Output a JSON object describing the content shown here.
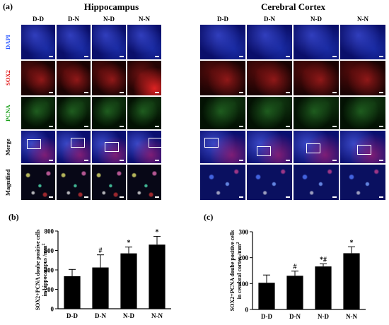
{
  "figure": {
    "panel_a": "(a)",
    "panel_b": "(b)",
    "panel_c": "(c)",
    "hippocampus_title": "Hippocampus",
    "cortex_title": "Cerebral Cortex",
    "groups": [
      "D-D",
      "D-N",
      "N-D",
      "N-N"
    ],
    "rows": [
      {
        "label": "DAPI",
        "color": "#1f4fff"
      },
      {
        "label": "SOX2",
        "color": "#e01010"
      },
      {
        "label": "PCNA",
        "color": "#19a019"
      },
      {
        "label": "Merge",
        "color": "#000000"
      },
      {
        "label": "Magnified",
        "color": "#000000"
      }
    ]
  },
  "chart_data": [
    {
      "type": "bar",
      "panel": "(b)",
      "categories": [
        "D-D",
        "D-N",
        "N-D",
        "N-N"
      ],
      "values": [
        335,
        425,
        570,
        660
      ],
      "errors": [
        70,
        130,
        65,
        85
      ],
      "annotations": [
        "",
        "#",
        "*",
        "*"
      ],
      "ylabel": "SOX2+PCNA doube positive cells\nin hippocampus /mm²",
      "ylabel_line1": "SOX2+PCNA doube positive cells",
      "ylabel_line2": "in hippocampus /mm",
      "ylabel_sup": "2",
      "ylim": [
        0,
        800
      ],
      "yticks": [
        0,
        200,
        400,
        600,
        800
      ],
      "bar_color": "#000000"
    },
    {
      "type": "bar",
      "panel": "(c)",
      "categories": [
        "D-D",
        "D-N",
        "N-D",
        "N-N"
      ],
      "values": [
        103,
        130,
        166,
        217
      ],
      "errors": [
        30,
        18,
        10,
        25
      ],
      "annotations": [
        "",
        "#",
        "*#",
        "*"
      ],
      "ylabel": "SOX2+PCNA doube positive cells\nin cerebral cortex /mm²",
      "ylabel_line1": "SOX2+PCNA doube positive cells",
      "ylabel_line2": "in cerebral cortex /mm",
      "ylabel_sup": "2",
      "ylim": [
        0,
        300
      ],
      "yticks": [
        0,
        100,
        200,
        300
      ],
      "bar_color": "#000000"
    }
  ]
}
